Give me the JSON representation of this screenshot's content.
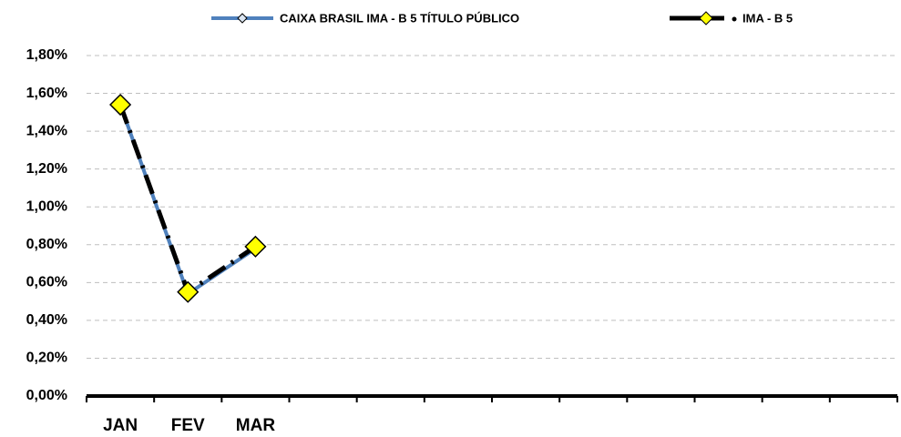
{
  "chart_data": {
    "type": "line",
    "categories": [
      "JAN",
      "FEV",
      "MAR",
      null,
      null,
      null,
      null,
      null,
      null,
      null,
      null,
      null
    ],
    "series": [
      {
        "name": "CAIXA BRASIL IMA - B 5 TÍTULO PÚBLICO",
        "color": "#4f81bd",
        "values": [
          1.54,
          0.54,
          0.78,
          null,
          null,
          null,
          null,
          null,
          null,
          null,
          null,
          null
        ]
      },
      {
        "name": "IMA - B 5",
        "color": "#000000",
        "values": [
          1.54,
          0.55,
          0.79,
          null,
          null,
          null,
          null,
          null,
          null,
          null,
          null,
          null
        ]
      }
    ],
    "ylim": [
      0,
      1.8
    ],
    "yticks": [
      {
        "value": 0,
        "label": "0,00%"
      },
      {
        "value": 0.2,
        "label": "0,20%"
      },
      {
        "value": 0.4,
        "label": "0,40%"
      },
      {
        "value": 0.6,
        "label": "0,60%"
      },
      {
        "value": 0.8,
        "label": "0,80%"
      },
      {
        "value": 1.0,
        "label": "1,00%"
      },
      {
        "value": 1.2,
        "label": "1,20%"
      },
      {
        "value": 1.4,
        "label": "1,40%"
      },
      {
        "value": 1.6,
        "label": "1,60%"
      },
      {
        "value": 1.8,
        "label": "1,80%"
      }
    ],
    "grid": true,
    "legend": "top"
  }
}
